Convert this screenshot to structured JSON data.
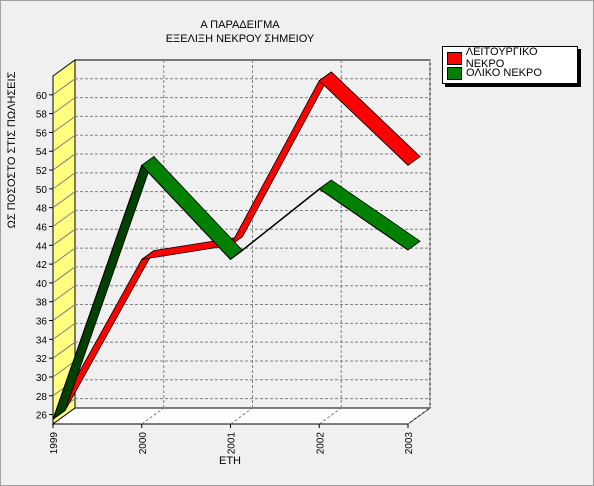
{
  "chart_data": {
    "type": "line",
    "title": "Α ΠΑΡΑΔΕΙΓΜΑ",
    "subtitle": "ΕΞΕΛΙΞΗ ΝΕΚΡΟΥ ΣΗΜΕΙΟΥ",
    "xlabel": "ΕΤΗ",
    "ylabel": "ΩΣ ΠΟΣΟΣΤΟ ΣΤΙΣ ΠΩΛΗΣΕΙΣ",
    "categories": [
      "1999",
      "2000",
      "2001",
      "2002",
      "2003"
    ],
    "y_ticks": [
      "26",
      "28",
      "30",
      "32",
      "34",
      "36",
      "38",
      "40",
      "42",
      "44",
      "46",
      "48",
      "50",
      "52",
      "54",
      "56",
      "58",
      "60"
    ],
    "ylim": [
      25,
      62
    ],
    "grid": true,
    "legend_position": "top-right",
    "series": [
      {
        "name": "ΛΕΙΤΟΥΡΓΙΚΟ ΝΕΚΡΟ",
        "color": "#ff0000",
        "values": [
          25.5,
          42.5,
          44.0,
          61.5,
          52.5
        ]
      },
      {
        "name": "ΟΛΙΚΟ ΝΕΚΡΟ",
        "color": "#008000",
        "values": [
          25.5,
          52.5,
          42.5,
          50.0,
          43.5
        ]
      }
    ]
  }
}
